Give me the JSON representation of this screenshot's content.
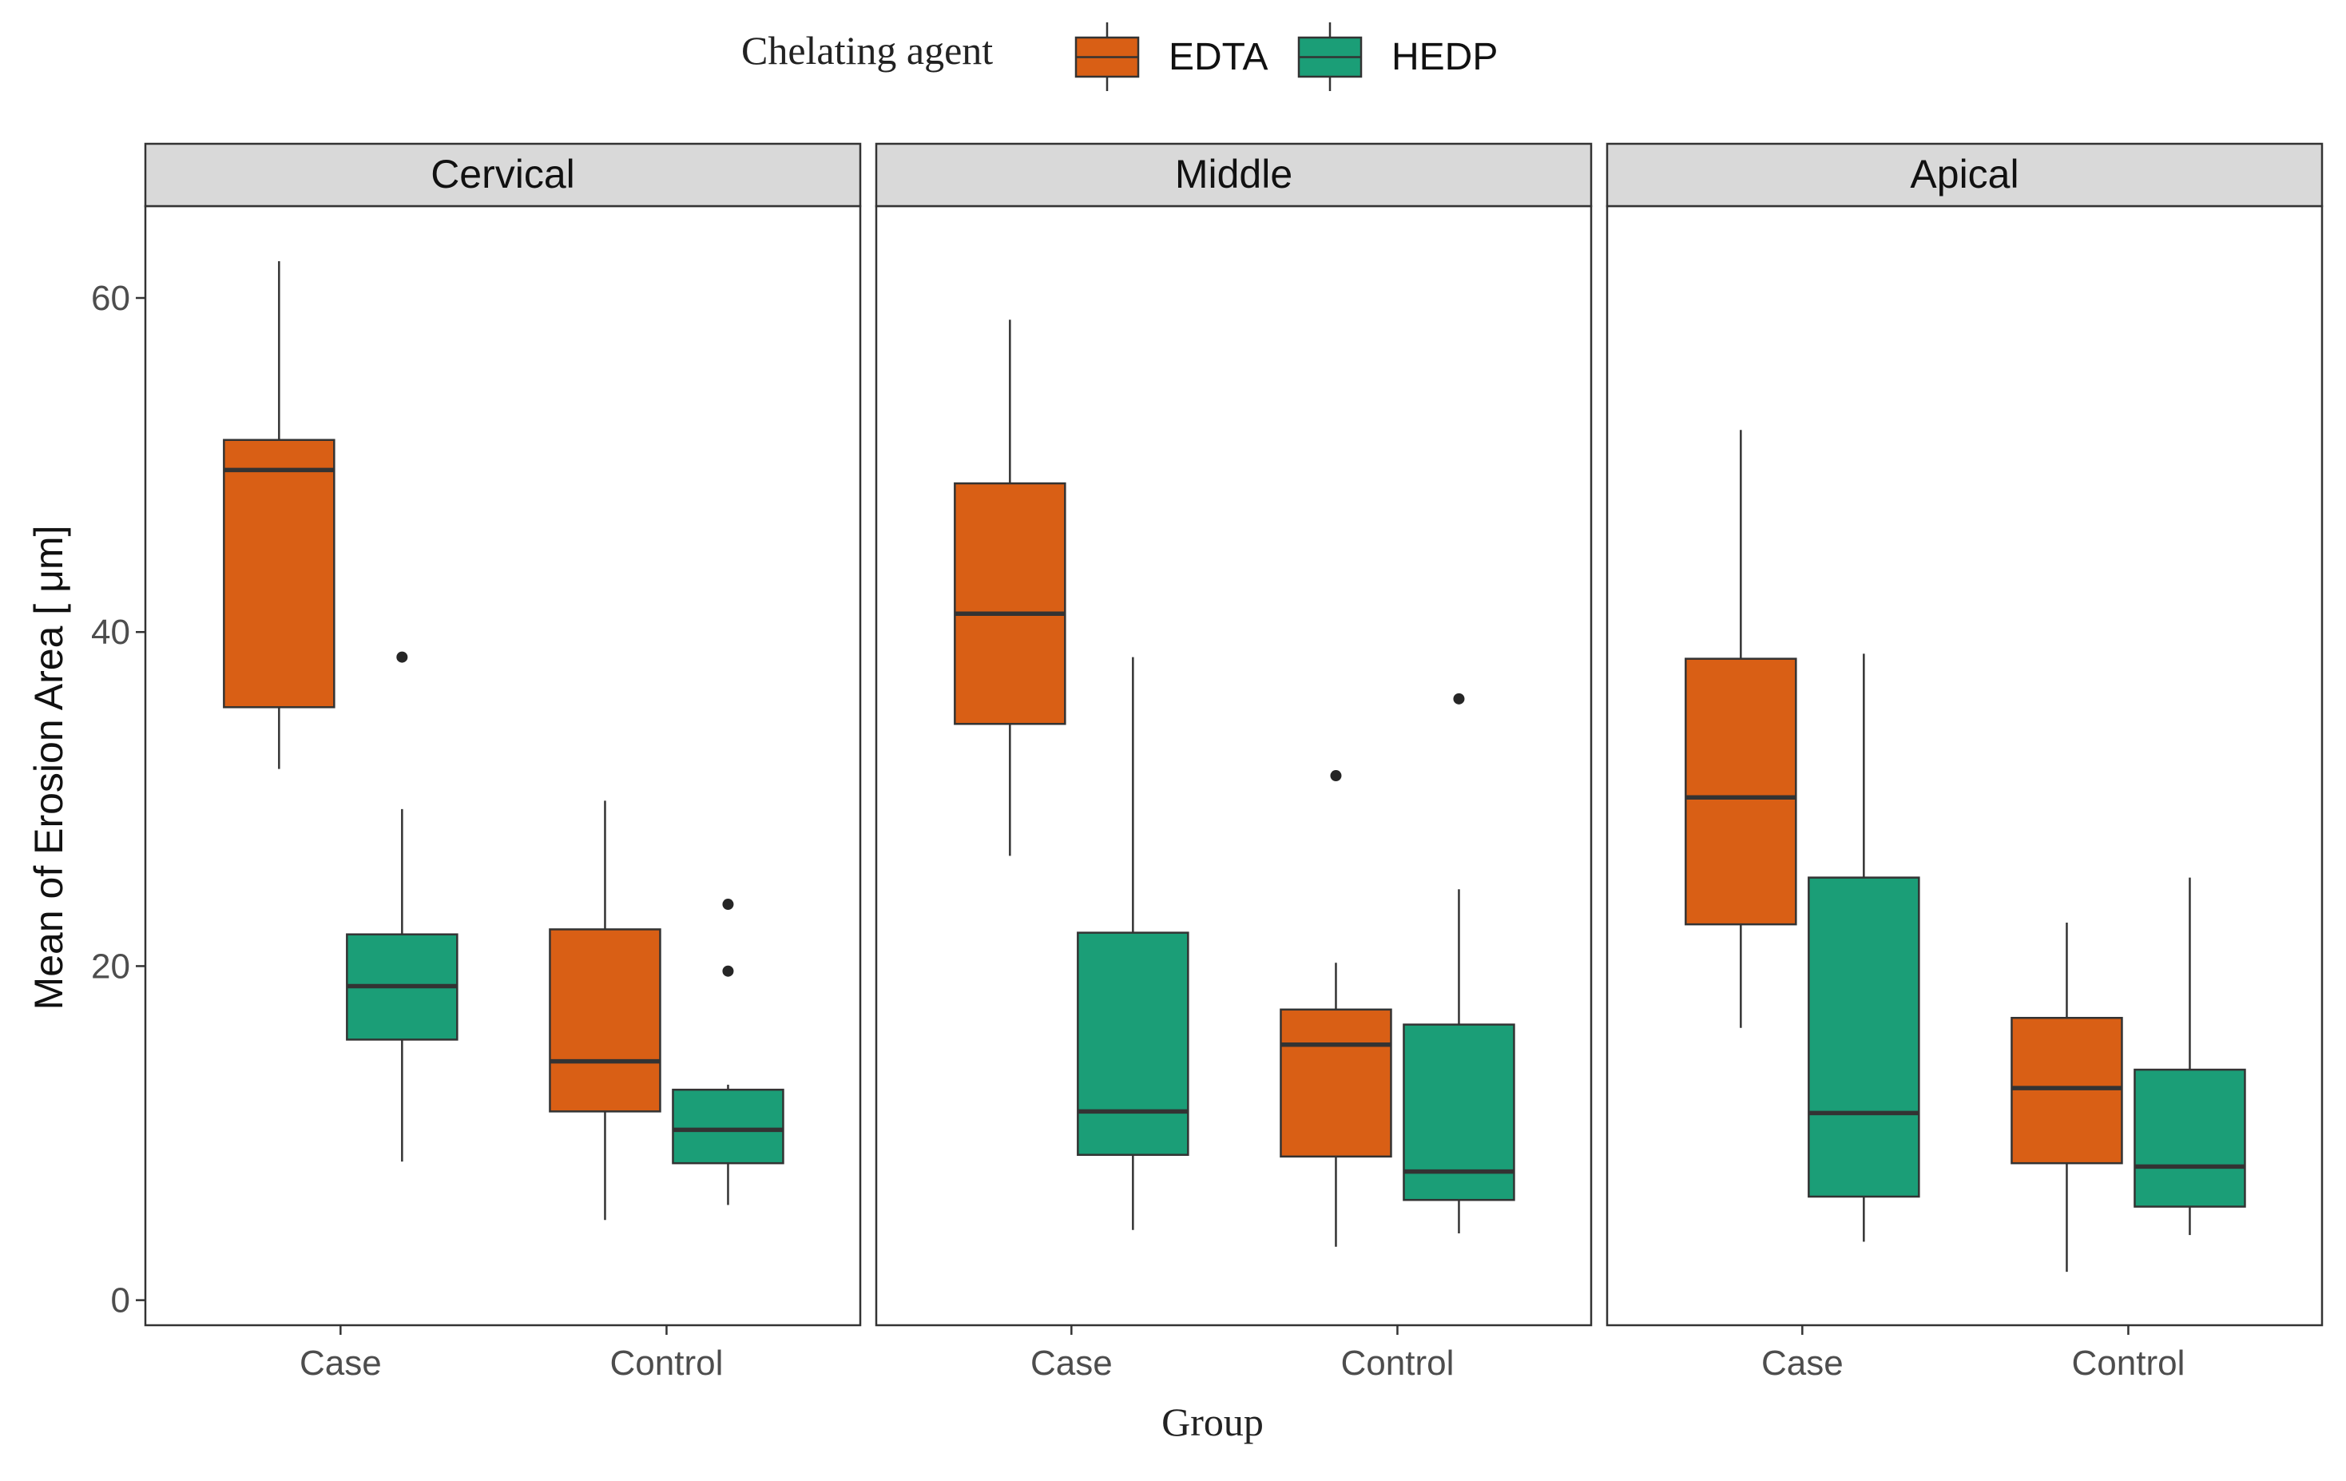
{
  "chart_data": {
    "type": "boxplot",
    "facets": [
      "Cervical",
      "Middle",
      "Apical"
    ],
    "groups": [
      "Case",
      "Control"
    ],
    "xlabel": "Group",
    "ylabel": "Mean of Erosion Area [ μm]",
    "y_ticks": [
      0,
      20,
      40,
      60
    ],
    "ylim": [
      -1.5,
      65.5
    ],
    "legend": {
      "title": "Chelating agent",
      "position": "top",
      "entries": [
        {
          "name": "EDTA",
          "color": "#d95f15"
        },
        {
          "name": "HEDP",
          "color": "#1b9e77"
        }
      ]
    },
    "series": [
      {
        "name": "EDTA",
        "color": "#d95f15",
        "boxes": [
          {
            "facet": "Cervical",
            "group": "Case",
            "whisker_low": 31.8,
            "q1": 35.5,
            "median": 49.7,
            "q3": 51.5,
            "whisker_high": 62.2,
            "outliers": []
          },
          {
            "facet": "Cervical",
            "group": "Control",
            "whisker_low": 4.8,
            "q1": 11.3,
            "median": 14.3,
            "q3": 22.2,
            "whisker_high": 29.9,
            "outliers": []
          },
          {
            "facet": "Middle",
            "group": "Case",
            "whisker_low": 26.6,
            "q1": 34.5,
            "median": 41.1,
            "q3": 48.9,
            "whisker_high": 58.7,
            "outliers": []
          },
          {
            "facet": "Middle",
            "group": "Control",
            "whisker_low": 3.2,
            "q1": 8.6,
            "median": 15.3,
            "q3": 17.4,
            "whisker_high": 20.2,
            "outliers": [
              31.4
            ]
          },
          {
            "facet": "Apical",
            "group": "Case",
            "whisker_low": 16.3,
            "q1": 22.5,
            "median": 30.1,
            "q3": 38.4,
            "whisker_high": 52.1,
            "outliers": []
          },
          {
            "facet": "Apical",
            "group": "Control",
            "whisker_low": 1.7,
            "q1": 8.2,
            "median": 12.7,
            "q3": 16.9,
            "whisker_high": 22.6,
            "outliers": []
          }
        ]
      },
      {
        "name": "HEDP",
        "color": "#1b9e77",
        "boxes": [
          {
            "facet": "Cervical",
            "group": "Case",
            "whisker_low": 8.3,
            "q1": 15.6,
            "median": 18.8,
            "q3": 21.9,
            "whisker_high": 29.4,
            "outliers": [
              38.5
            ]
          },
          {
            "facet": "Cervical",
            "group": "Control",
            "whisker_low": 5.7,
            "q1": 8.2,
            "median": 10.2,
            "q3": 12.6,
            "whisker_high": 12.9,
            "outliers": [
              19.7,
              23.7
            ]
          },
          {
            "facet": "Middle",
            "group": "Case",
            "whisker_low": 4.2,
            "q1": 8.7,
            "median": 11.3,
            "q3": 22.0,
            "whisker_high": 38.5,
            "outliers": []
          },
          {
            "facet": "Middle",
            "group": "Control",
            "whisker_low": 4.0,
            "q1": 6.0,
            "median": 7.7,
            "q3": 16.5,
            "whisker_high": 24.6,
            "outliers": [
              36.0
            ]
          },
          {
            "facet": "Apical",
            "group": "Case",
            "whisker_low": 3.5,
            "q1": 6.2,
            "median": 11.2,
            "q3": 25.3,
            "whisker_high": 38.7,
            "outliers": []
          },
          {
            "facet": "Apical",
            "group": "Control",
            "whisker_low": 3.9,
            "q1": 5.6,
            "median": 8.0,
            "q3": 13.8,
            "whisker_high": 25.3,
            "outliers": []
          }
        ]
      }
    ]
  }
}
